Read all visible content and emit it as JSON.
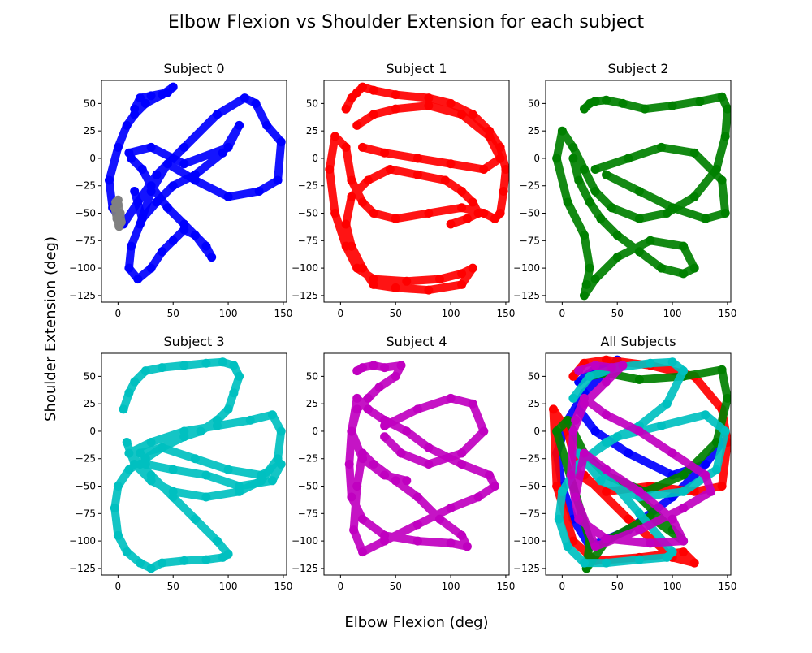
{
  "chart_data": {
    "type": "scatter",
    "title": "Elbow Flexion vs Shoulder Extension for each subject",
    "xlabel": "Elbow Flexion (deg)",
    "ylabel": "Shoulder Extension (deg)",
    "xlim": [
      -15,
      153
    ],
    "ylim": [
      -131,
      71
    ],
    "xticks": [
      0,
      50,
      100,
      150
    ],
    "yticks": [
      50,
      25,
      0,
      -25,
      -50,
      -75,
      -100,
      -125
    ],
    "grid": false,
    "legend": "none",
    "panels": [
      {
        "title": "Subject 0",
        "series": [
          {
            "color": "#0000ff",
            "x": [
              15,
              20,
              30,
              45,
              50,
              40,
              25,
              15,
              8,
              0,
              -8,
              -5,
              5,
              18,
              35,
              60,
              90,
              115,
              125,
              135,
              148,
              145,
              128,
              100,
              70,
              45,
              30,
              20,
              12,
              10,
              18,
              30,
              40,
              50,
              60,
              70,
              85,
              80,
              60,
              45,
              30,
              22,
              12
            ],
            "y": [
              45,
              55,
              57,
              60,
              65,
              58,
              50,
              40,
              30,
              10,
              -20,
              -45,
              -60,
              -40,
              -15,
              10,
              40,
              55,
              50,
              30,
              15,
              -20,
              -30,
              -35,
              -20,
              -5,
              -30,
              -60,
              -80,
              -100,
              -110,
              -100,
              -85,
              -75,
              -65,
              -70,
              -90,
              -80,
              -60,
              -45,
              -25,
              -10,
              0
            ]
          },
          {
            "color": "#0000ff",
            "x": [
              10,
              30,
              60,
              100,
              110,
              95,
              70,
              50,
              35,
              22,
              15
            ],
            "y": [
              5,
              10,
              -5,
              10,
              30,
              5,
              -15,
              -25,
              -40,
              -55,
              -30
            ]
          },
          {
            "color": "#808080",
            "x": [
              -2,
              0,
              2,
              3,
              1,
              -1,
              -3,
              0
            ],
            "y": [
              -40,
              -42,
              -50,
              -58,
              -62,
              -55,
              -45,
              -38
            ]
          }
        ]
      },
      {
        "title": "Subject 1",
        "series": [
          {
            "color": "#ff0000",
            "x": [
              5,
              10,
              15,
              20,
              30,
              50,
              80,
              100,
              120,
              135,
              145,
              150,
              148,
              145,
              140,
              130,
              110,
              80,
              50,
              30,
              20,
              10,
              5,
              -5,
              -10,
              -5,
              5,
              15,
              30,
              60,
              90,
              110,
              120,
              110,
              80,
              50,
              30,
              20,
              10,
              5,
              10,
              25,
              45,
              70,
              95,
              110,
              120,
              125,
              115,
              100
            ],
            "y": [
              45,
              55,
              60,
              65,
              62,
              58,
              55,
              50,
              40,
              25,
              10,
              -10,
              -30,
              -50,
              -55,
              -50,
              -45,
              -50,
              -55,
              -50,
              -40,
              -20,
              10,
              20,
              -10,
              -50,
              -80,
              -100,
              -110,
              -112,
              -110,
              -105,
              -100,
              -115,
              -120,
              -118,
              -115,
              -100,
              -80,
              -60,
              -35,
              -20,
              -10,
              -15,
              -20,
              -30,
              -40,
              -50,
              -55,
              -60
            ]
          },
          {
            "color": "#ff0000",
            "x": [
              15,
              30,
              50,
              80,
              110,
              135,
              145,
              130,
              100,
              70,
              40,
              20
            ],
            "y": [
              30,
              40,
              45,
              48,
              40,
              20,
              0,
              -10,
              -5,
              0,
              5,
              10
            ]
          }
        ]
      },
      {
        "title": "Subject 2",
        "series": [
          {
            "color": "#008000",
            "x": [
              20,
              25,
              30,
              40,
              55,
              75,
              100,
              125,
              145,
              150,
              148,
              140,
              120,
              95,
              70,
              45,
              30,
              20,
              10,
              0,
              -5,
              5,
              20,
              25,
              22,
              20,
              30,
              50,
              80,
              110,
              120,
              110,
              90,
              70,
              50,
              35,
              25,
              15,
              10
            ],
            "y": [
              45,
              50,
              52,
              53,
              50,
              45,
              48,
              52,
              56,
              45,
              20,
              -10,
              -35,
              -50,
              -55,
              -45,
              -30,
              -10,
              10,
              25,
              0,
              -40,
              -70,
              -100,
              -115,
              -125,
              -110,
              -90,
              -75,
              -80,
              -100,
              -105,
              -100,
              -85,
              -70,
              -55,
              -40,
              -20,
              0
            ]
          },
          {
            "color": "#008000",
            "x": [
              30,
              60,
              90,
              120,
              145,
              148,
              130,
              100,
              70,
              40
            ],
            "y": [
              -10,
              0,
              10,
              5,
              -20,
              -50,
              -55,
              -45,
              -30,
              -15
            ]
          }
        ]
      },
      {
        "title": "Subject 3",
        "series": [
          {
            "color": "#00c0c0",
            "x": [
              5,
              10,
              15,
              25,
              40,
              60,
              80,
              95,
              105,
              110,
              105,
              100,
              90,
              75,
              60,
              40,
              25,
              10,
              0,
              -3,
              0,
              8,
              20,
              30,
              40,
              60,
              80,
              95,
              100,
              90,
              70,
              50,
              30,
              20,
              10,
              30,
              60,
              90,
              120,
              140,
              148,
              145,
              130,
              110,
              80,
              50,
              30,
              15,
              8
            ],
            "y": [
              20,
              35,
              45,
              55,
              58,
              60,
              62,
              63,
              60,
              50,
              35,
              20,
              10,
              0,
              -5,
              -15,
              -25,
              -35,
              -50,
              -70,
              -95,
              -110,
              -120,
              -125,
              -120,
              -118,
              -117,
              -115,
              -112,
              -100,
              -80,
              -60,
              -40,
              -30,
              -20,
              -10,
              0,
              5,
              10,
              15,
              0,
              -25,
              -45,
              -55,
              -60,
              -55,
              -45,
              -30,
              -10
            ]
          },
          {
            "color": "#00c0c0",
            "x": [
              20,
              40,
              70,
              100,
              130,
              148,
              140,
              110,
              80,
              50,
              25
            ],
            "y": [
              -20,
              -15,
              -25,
              -35,
              -40,
              -30,
              -45,
              -50,
              -40,
              -35,
              -30
            ]
          }
        ]
      },
      {
        "title": "Subject 4",
        "series": [
          {
            "color": "#c000c0",
            "x": [
              15,
              20,
              30,
              40,
              55,
              50,
              35,
              25,
              15,
              10,
              8,
              10,
              20,
              40,
              70,
              100,
              115,
              110,
              90,
              70,
              50,
              30,
              20,
              15,
              12,
              20,
              40,
              70,
              100,
              125,
              140,
              135,
              110,
              80,
              60,
              40,
              25,
              15,
              10,
              20,
              40,
              60
            ],
            "y": [
              55,
              58,
              60,
              58,
              60,
              50,
              40,
              30,
              20,
              0,
              -30,
              -60,
              -80,
              -95,
              -100,
              -102,
              -105,
              -95,
              -80,
              -60,
              -45,
              -30,
              -20,
              -50,
              -90,
              -110,
              -100,
              -85,
              -70,
              -60,
              -50,
              -40,
              -30,
              -15,
              0,
              10,
              20,
              30,
              0,
              -25,
              -40,
              -45
            ]
          },
          {
            "color": "#c000c0",
            "x": [
              40,
              70,
              100,
              120,
              130,
              110,
              80,
              55,
              40
            ],
            "y": [
              5,
              20,
              30,
              25,
              0,
              -20,
              -30,
              -20,
              -5
            ]
          }
        ]
      },
      {
        "title": "All Subjects",
        "series": [
          {
            "color": "#0000ff",
            "x": [
              15,
              30,
              45,
              50,
              40,
              20,
              5,
              -5,
              0,
              10,
              25,
              60,
              100,
              130,
              145,
              130,
              100,
              60,
              30,
              15
            ],
            "y": [
              45,
              57,
              60,
              65,
              55,
              35,
              10,
              -20,
              -50,
              -80,
              -105,
              -90,
              -60,
              -30,
              -10,
              -30,
              -40,
              -20,
              0,
              20
            ]
          },
          {
            "color": "#ff0000",
            "x": [
              10,
              20,
              40,
              80,
              120,
              145,
              150,
              145,
              120,
              80,
              40,
              15,
              5,
              -8,
              -5,
              10,
              30,
              70,
              110,
              120,
              100,
              60,
              20
            ],
            "y": [
              50,
              62,
              65,
              60,
              50,
              20,
              -10,
              -50,
              -55,
              -50,
              -55,
              -40,
              0,
              20,
              -50,
              -100,
              -118,
              -115,
              -110,
              -120,
              -115,
              -80,
              -40
            ]
          },
          {
            "color": "#008000",
            "x": [
              25,
              40,
              70,
              110,
              145,
              150,
              140,
              110,
              75,
              40,
              20,
              5,
              -5,
              10,
              25,
              22,
              40,
              80,
              110,
              100,
              70
            ],
            "y": [
              50,
              53,
              47,
              50,
              56,
              30,
              -10,
              -40,
              -55,
              -40,
              -20,
              10,
              0,
              -50,
              -100,
              -125,
              -100,
              -78,
              -100,
              -90,
              -60
            ]
          },
          {
            "color": "#00c0c0",
            "x": [
              10,
              25,
              50,
              80,
              100,
              110,
              95,
              70,
              40,
              15,
              0,
              -3,
              5,
              20,
              40,
              70,
              95,
              100,
              70,
              40,
              20,
              50,
              90,
              130,
              148,
              140,
              110,
              70,
              35,
              15
            ],
            "y": [
              30,
              50,
              58,
              62,
              63,
              55,
              25,
              5,
              -10,
              -30,
              -55,
              -80,
              -105,
              -120,
              -120,
              -117,
              -115,
              -110,
              -75,
              -40,
              -25,
              -5,
              5,
              15,
              0,
              -35,
              -55,
              -60,
              -45,
              -20
            ]
          },
          {
            "color": "#c000c0",
            "x": [
              15,
              30,
              45,
              55,
              40,
              20,
              10,
              8,
              15,
              40,
              80,
              110,
              100,
              70,
              40,
              20,
              12,
              30,
              70,
              110,
              135,
              130,
              100,
              70,
              40,
              20,
              12
            ],
            "y": [
              55,
              60,
              58,
              60,
              45,
              25,
              0,
              -40,
              -80,
              -98,
              -102,
              -100,
              -80,
              -55,
              -35,
              -20,
              -60,
              -105,
              -90,
              -70,
              -55,
              -40,
              -20,
              0,
              15,
              30,
              10
            ]
          }
        ]
      }
    ]
  }
}
